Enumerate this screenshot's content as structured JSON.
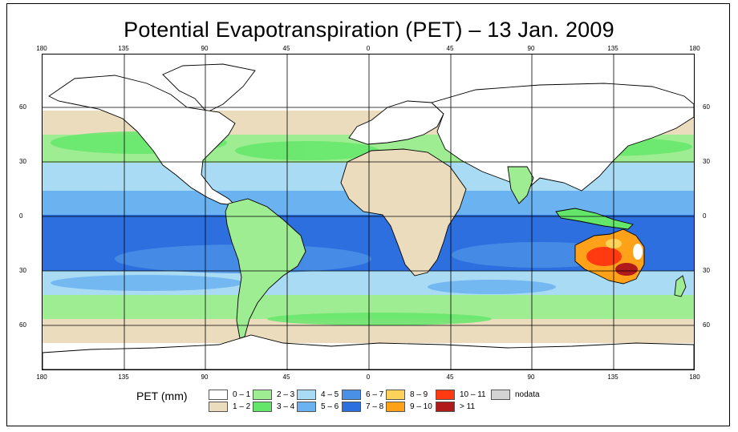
{
  "title": "Potential Evapotranspiration (PET) – 13 Jan. 2009",
  "axes": {
    "longitude_labels": [
      "180",
      "135",
      "90",
      "45",
      "0",
      "45",
      "90",
      "135",
      "180"
    ],
    "latitude_labels": [
      "60",
      "30",
      "0",
      "30",
      "60"
    ]
  },
  "legend": {
    "title": "PET (mm)",
    "items": [
      {
        "label": "0 – 1",
        "color": "#ffffff"
      },
      {
        "label": "1 – 2",
        "color": "#ecdcbe"
      },
      {
        "label": "2 – 3",
        "color": "#9fed92"
      },
      {
        "label": "3 – 4",
        "color": "#64e66a"
      },
      {
        "label": "4 – 5",
        "color": "#a9dcf4"
      },
      {
        "label": "5 – 6",
        "color": "#6ab2f0"
      },
      {
        "label": "6 – 7",
        "color": "#4a90e6"
      },
      {
        "label": "7 – 8",
        "color": "#2e6fe0"
      },
      {
        "label": "8 – 9",
        "color": "#ffd25a"
      },
      {
        "label": "9 – 10",
        "color": "#ffa21a"
      },
      {
        "label": "10 – 11",
        "color": "#ff3a10"
      },
      {
        "label": "> 11",
        "color": "#b11a1a"
      },
      {
        "label": "nodata",
        "color": "#d4d4d4"
      }
    ]
  },
  "map_data": {
    "type": "heatmap",
    "units": "mm",
    "lon_range": [
      -180,
      180
    ],
    "lat_range": [
      -90,
      85
    ]
  }
}
